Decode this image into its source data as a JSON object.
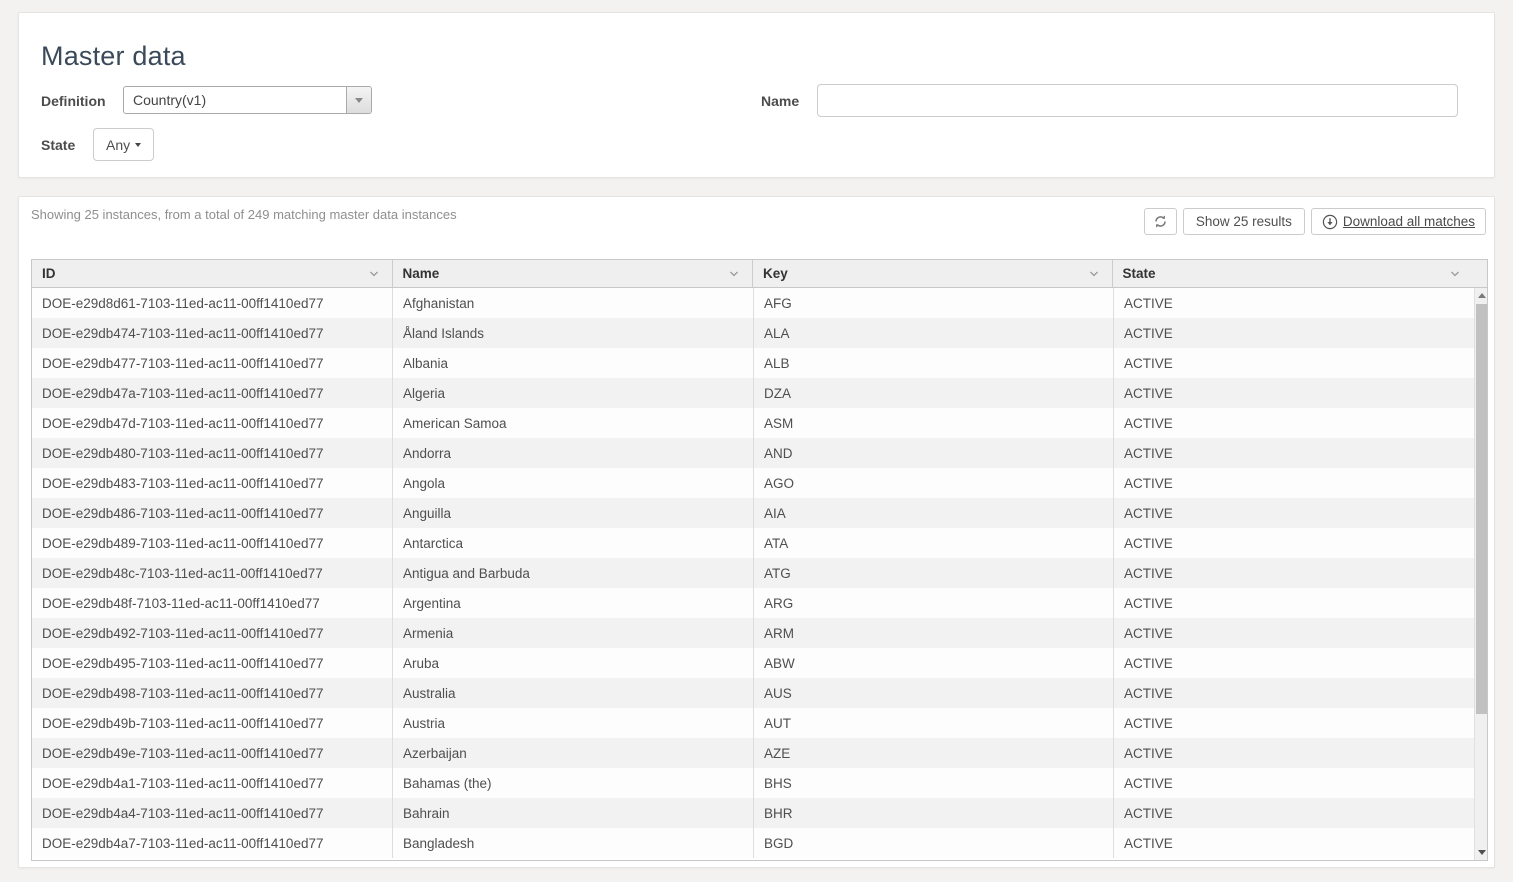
{
  "page": {
    "title": "Master data"
  },
  "filters": {
    "definition": {
      "label": "Definition",
      "value": "Country(v1)"
    },
    "name": {
      "label": "Name",
      "value": ""
    },
    "state": {
      "label": "State",
      "value": "Any"
    }
  },
  "results": {
    "summary": "Showing 25 instances, from a total of 249 matching master data instances",
    "show_results_label": "Show 25 results",
    "download_label": "Download all matches"
  },
  "table": {
    "columns": [
      "ID",
      "Name",
      "Key",
      "State"
    ],
    "rows": [
      {
        "id": "DOE-e29d8d61-7103-11ed-ac11-00ff1410ed77",
        "name": "Afghanistan",
        "key": "AFG",
        "state": "ACTIVE"
      },
      {
        "id": "DOE-e29db474-7103-11ed-ac11-00ff1410ed77",
        "name": "Åland Islands",
        "key": "ALA",
        "state": "ACTIVE"
      },
      {
        "id": "DOE-e29db477-7103-11ed-ac11-00ff1410ed77",
        "name": "Albania",
        "key": "ALB",
        "state": "ACTIVE"
      },
      {
        "id": "DOE-e29db47a-7103-11ed-ac11-00ff1410ed77",
        "name": "Algeria",
        "key": "DZA",
        "state": "ACTIVE"
      },
      {
        "id": "DOE-e29db47d-7103-11ed-ac11-00ff1410ed77",
        "name": "American Samoa",
        "key": "ASM",
        "state": "ACTIVE"
      },
      {
        "id": "DOE-e29db480-7103-11ed-ac11-00ff1410ed77",
        "name": "Andorra",
        "key": "AND",
        "state": "ACTIVE"
      },
      {
        "id": "DOE-e29db483-7103-11ed-ac11-00ff1410ed77",
        "name": "Angola",
        "key": "AGO",
        "state": "ACTIVE"
      },
      {
        "id": "DOE-e29db486-7103-11ed-ac11-00ff1410ed77",
        "name": "Anguilla",
        "key": "AIA",
        "state": "ACTIVE"
      },
      {
        "id": "DOE-e29db489-7103-11ed-ac11-00ff1410ed77",
        "name": "Antarctica",
        "key": "ATA",
        "state": "ACTIVE"
      },
      {
        "id": "DOE-e29db48c-7103-11ed-ac11-00ff1410ed77",
        "name": "Antigua and Barbuda",
        "key": "ATG",
        "state": "ACTIVE"
      },
      {
        "id": "DOE-e29db48f-7103-11ed-ac11-00ff1410ed77",
        "name": "Argentina",
        "key": "ARG",
        "state": "ACTIVE"
      },
      {
        "id": "DOE-e29db492-7103-11ed-ac11-00ff1410ed77",
        "name": "Armenia",
        "key": "ARM",
        "state": "ACTIVE"
      },
      {
        "id": "DOE-e29db495-7103-11ed-ac11-00ff1410ed77",
        "name": "Aruba",
        "key": "ABW",
        "state": "ACTIVE"
      },
      {
        "id": "DOE-e29db498-7103-11ed-ac11-00ff1410ed77",
        "name": "Australia",
        "key": "AUS",
        "state": "ACTIVE"
      },
      {
        "id": "DOE-e29db49b-7103-11ed-ac11-00ff1410ed77",
        "name": "Austria",
        "key": "AUT",
        "state": "ACTIVE"
      },
      {
        "id": "DOE-e29db49e-7103-11ed-ac11-00ff1410ed77",
        "name": "Azerbaijan",
        "key": "AZE",
        "state": "ACTIVE"
      },
      {
        "id": "DOE-e29db4a1-7103-11ed-ac11-00ff1410ed77",
        "name": "Bahamas (the)",
        "key": "BHS",
        "state": "ACTIVE"
      },
      {
        "id": "DOE-e29db4a4-7103-11ed-ac11-00ff1410ed77",
        "name": "Bahrain",
        "key": "BHR",
        "state": "ACTIVE"
      },
      {
        "id": "DOE-e29db4a7-7103-11ed-ac11-00ff1410ed77",
        "name": "Bangladesh",
        "key": "BGD",
        "state": "ACTIVE"
      }
    ]
  },
  "icons": {
    "refresh": "⟳",
    "download_circle": "⤓",
    "chevron_down": "⌄",
    "caret_down": "▾",
    "scroll_up": "▲",
    "scroll_down": "▼"
  },
  "colors": {
    "page_background": "#f4f2f1",
    "panel_background": "#ffffff",
    "title_text": "#3b4a5a",
    "table_header_background": "#efefef",
    "row_stripe": "#f2f2f2",
    "table_border": "#c8c8c8"
  }
}
